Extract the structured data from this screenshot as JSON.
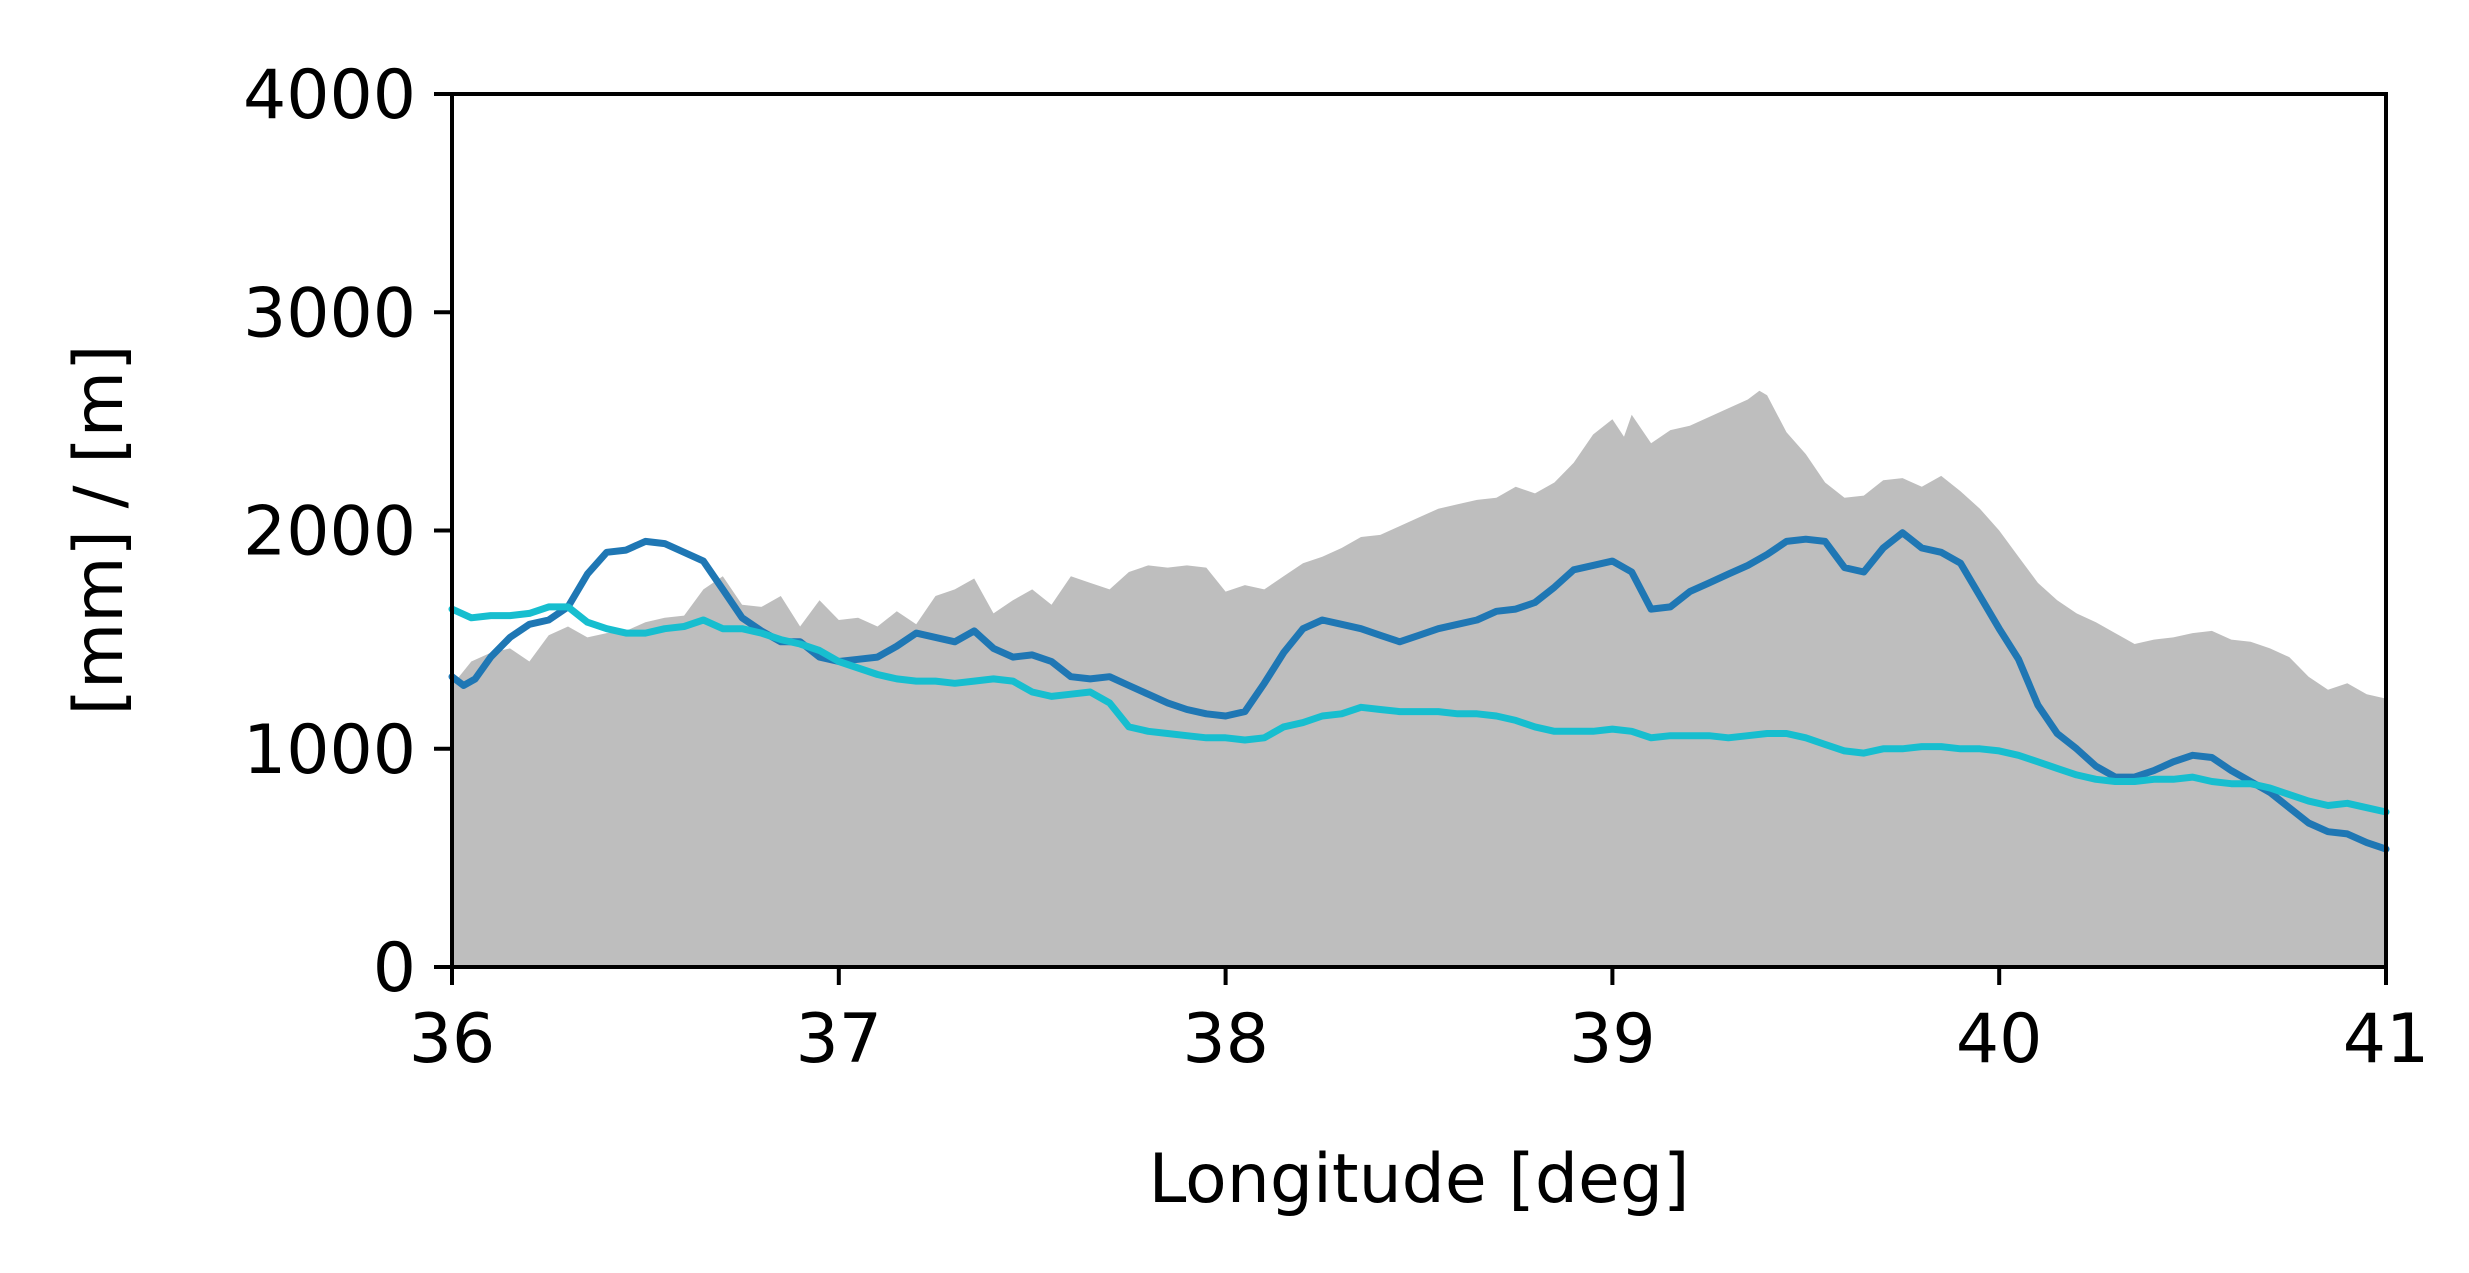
{
  "chart_data": {
    "type": "area",
    "title": "",
    "xlabel": "Longitude [deg]",
    "ylabel": "[mm] / [m]",
    "xlim": [
      36,
      41
    ],
    "ylim": [
      0,
      4000
    ],
    "grid": false,
    "legend": "none",
    "x_ticks": [
      36,
      37,
      38,
      39,
      40,
      41
    ],
    "x_tick_labels": [
      "36",
      "37",
      "38",
      "39",
      "40",
      "41"
    ],
    "y_ticks": [
      0,
      1000,
      2000,
      3000,
      4000
    ],
    "y_tick_labels": [
      "0",
      "1000",
      "2000",
      "3000",
      "4000"
    ],
    "series": [
      {
        "kind": "area",
        "color": "#bebebe",
        "points": [
          [
            36.0,
            1290
          ],
          [
            36.05,
            1400
          ],
          [
            36.1,
            1440
          ],
          [
            36.15,
            1460
          ],
          [
            36.2,
            1400
          ],
          [
            36.25,
            1520
          ],
          [
            36.3,
            1560
          ],
          [
            36.35,
            1510
          ],
          [
            36.4,
            1530
          ],
          [
            36.45,
            1540
          ],
          [
            36.5,
            1580
          ],
          [
            36.55,
            1600
          ],
          [
            36.6,
            1610
          ],
          [
            36.65,
            1730
          ],
          [
            36.7,
            1790
          ],
          [
            36.75,
            1660
          ],
          [
            36.8,
            1650
          ],
          [
            36.85,
            1700
          ],
          [
            36.9,
            1560
          ],
          [
            36.95,
            1680
          ],
          [
            37.0,
            1590
          ],
          [
            37.05,
            1600
          ],
          [
            37.1,
            1560
          ],
          [
            37.15,
            1630
          ],
          [
            37.2,
            1570
          ],
          [
            37.25,
            1700
          ],
          [
            37.3,
            1730
          ],
          [
            37.35,
            1780
          ],
          [
            37.4,
            1620
          ],
          [
            37.45,
            1680
          ],
          [
            37.5,
            1730
          ],
          [
            37.55,
            1660
          ],
          [
            37.6,
            1790
          ],
          [
            37.65,
            1760
          ],
          [
            37.7,
            1730
          ],
          [
            37.75,
            1810
          ],
          [
            37.8,
            1840
          ],
          [
            37.85,
            1830
          ],
          [
            37.9,
            1840
          ],
          [
            37.95,
            1830
          ],
          [
            38.0,
            1720
          ],
          [
            38.05,
            1750
          ],
          [
            38.1,
            1730
          ],
          [
            38.15,
            1790
          ],
          [
            38.2,
            1850
          ],
          [
            38.25,
            1880
          ],
          [
            38.3,
            1920
          ],
          [
            38.35,
            1970
          ],
          [
            38.4,
            1980
          ],
          [
            38.45,
            2020
          ],
          [
            38.5,
            2060
          ],
          [
            38.55,
            2100
          ],
          [
            38.6,
            2120
          ],
          [
            38.65,
            2140
          ],
          [
            38.7,
            2150
          ],
          [
            38.75,
            2200
          ],
          [
            38.8,
            2170
          ],
          [
            38.85,
            2220
          ],
          [
            38.9,
            2310
          ],
          [
            38.95,
            2440
          ],
          [
            39.0,
            2510
          ],
          [
            39.03,
            2430
          ],
          [
            39.05,
            2530
          ],
          [
            39.1,
            2400
          ],
          [
            39.15,
            2460
          ],
          [
            39.2,
            2480
          ],
          [
            39.25,
            2520
          ],
          [
            39.3,
            2560
          ],
          [
            39.35,
            2600
          ],
          [
            39.38,
            2640
          ],
          [
            39.4,
            2620
          ],
          [
            39.45,
            2450
          ],
          [
            39.5,
            2350
          ],
          [
            39.55,
            2220
          ],
          [
            39.6,
            2150
          ],
          [
            39.65,
            2160
          ],
          [
            39.7,
            2230
          ],
          [
            39.75,
            2240
          ],
          [
            39.8,
            2200
          ],
          [
            39.85,
            2250
          ],
          [
            39.9,
            2180
          ],
          [
            39.95,
            2100
          ],
          [
            40.0,
            2000
          ],
          [
            40.05,
            1880
          ],
          [
            40.1,
            1760
          ],
          [
            40.15,
            1680
          ],
          [
            40.2,
            1620
          ],
          [
            40.25,
            1580
          ],
          [
            40.3,
            1530
          ],
          [
            40.35,
            1480
          ],
          [
            40.4,
            1500
          ],
          [
            40.45,
            1510
          ],
          [
            40.5,
            1530
          ],
          [
            40.55,
            1540
          ],
          [
            40.6,
            1500
          ],
          [
            40.65,
            1490
          ],
          [
            40.7,
            1460
          ],
          [
            40.75,
            1420
          ],
          [
            40.8,
            1330
          ],
          [
            40.85,
            1270
          ],
          [
            40.9,
            1300
          ],
          [
            40.95,
            1250
          ],
          [
            41.0,
            1230
          ]
        ]
      },
      {
        "kind": "line",
        "color": "#1f77b4",
        "points": [
          [
            36.0,
            1330
          ],
          [
            36.03,
            1290
          ],
          [
            36.06,
            1320
          ],
          [
            36.1,
            1420
          ],
          [
            36.15,
            1510
          ],
          [
            36.2,
            1570
          ],
          [
            36.25,
            1590
          ],
          [
            36.3,
            1650
          ],
          [
            36.35,
            1800
          ],
          [
            36.4,
            1900
          ],
          [
            36.45,
            1910
          ],
          [
            36.5,
            1950
          ],
          [
            36.55,
            1940
          ],
          [
            36.6,
            1900
          ],
          [
            36.65,
            1860
          ],
          [
            36.7,
            1730
          ],
          [
            36.75,
            1600
          ],
          [
            36.8,
            1540
          ],
          [
            36.85,
            1490
          ],
          [
            36.9,
            1490
          ],
          [
            36.95,
            1420
          ],
          [
            37.0,
            1400
          ],
          [
            37.05,
            1410
          ],
          [
            37.1,
            1420
          ],
          [
            37.15,
            1470
          ],
          [
            37.2,
            1530
          ],
          [
            37.25,
            1510
          ],
          [
            37.3,
            1490
          ],
          [
            37.35,
            1540
          ],
          [
            37.4,
            1460
          ],
          [
            37.45,
            1420
          ],
          [
            37.5,
            1430
          ],
          [
            37.55,
            1400
          ],
          [
            37.6,
            1330
          ],
          [
            37.65,
            1320
          ],
          [
            37.7,
            1330
          ],
          [
            37.75,
            1290
          ],
          [
            37.8,
            1250
          ],
          [
            37.85,
            1210
          ],
          [
            37.9,
            1180
          ],
          [
            37.95,
            1160
          ],
          [
            38.0,
            1150
          ],
          [
            38.05,
            1170
          ],
          [
            38.1,
            1300
          ],
          [
            38.15,
            1440
          ],
          [
            38.2,
            1550
          ],
          [
            38.25,
            1590
          ],
          [
            38.3,
            1570
          ],
          [
            38.35,
            1550
          ],
          [
            38.4,
            1520
          ],
          [
            38.45,
            1490
          ],
          [
            38.5,
            1520
          ],
          [
            38.55,
            1550
          ],
          [
            38.6,
            1570
          ],
          [
            38.65,
            1590
          ],
          [
            38.7,
            1630
          ],
          [
            38.75,
            1640
          ],
          [
            38.8,
            1670
          ],
          [
            38.85,
            1740
          ],
          [
            38.9,
            1820
          ],
          [
            38.95,
            1840
          ],
          [
            39.0,
            1860
          ],
          [
            39.05,
            1810
          ],
          [
            39.1,
            1640
          ],
          [
            39.15,
            1650
          ],
          [
            39.2,
            1720
          ],
          [
            39.25,
            1760
          ],
          [
            39.3,
            1800
          ],
          [
            39.35,
            1840
          ],
          [
            39.4,
            1890
          ],
          [
            39.45,
            1950
          ],
          [
            39.5,
            1960
          ],
          [
            39.55,
            1950
          ],
          [
            39.6,
            1830
          ],
          [
            39.65,
            1810
          ],
          [
            39.7,
            1920
          ],
          [
            39.75,
            1990
          ],
          [
            39.8,
            1920
          ],
          [
            39.85,
            1900
          ],
          [
            39.9,
            1850
          ],
          [
            39.95,
            1700
          ],
          [
            40.0,
            1550
          ],
          [
            40.05,
            1410
          ],
          [
            40.1,
            1200
          ],
          [
            40.15,
            1070
          ],
          [
            40.2,
            1000
          ],
          [
            40.25,
            920
          ],
          [
            40.3,
            870
          ],
          [
            40.35,
            870
          ],
          [
            40.4,
            900
          ],
          [
            40.45,
            940
          ],
          [
            40.5,
            970
          ],
          [
            40.55,
            960
          ],
          [
            40.6,
            900
          ],
          [
            40.65,
            850
          ],
          [
            40.7,
            800
          ],
          [
            40.75,
            730
          ],
          [
            40.8,
            660
          ],
          [
            40.85,
            620
          ],
          [
            40.9,
            610
          ],
          [
            40.95,
            570
          ],
          [
            41.0,
            540
          ]
        ]
      },
      {
        "kind": "line",
        "color": "#17becf",
        "points": [
          [
            36.0,
            1640
          ],
          [
            36.05,
            1600
          ],
          [
            36.1,
            1610
          ],
          [
            36.15,
            1610
          ],
          [
            36.2,
            1620
          ],
          [
            36.25,
            1650
          ],
          [
            36.3,
            1650
          ],
          [
            36.35,
            1580
          ],
          [
            36.4,
            1550
          ],
          [
            36.45,
            1530
          ],
          [
            36.5,
            1530
          ],
          [
            36.55,
            1550
          ],
          [
            36.6,
            1560
          ],
          [
            36.65,
            1590
          ],
          [
            36.7,
            1550
          ],
          [
            36.75,
            1550
          ],
          [
            36.8,
            1530
          ],
          [
            36.85,
            1500
          ],
          [
            36.9,
            1480
          ],
          [
            36.95,
            1450
          ],
          [
            37.0,
            1400
          ],
          [
            37.05,
            1370
          ],
          [
            37.1,
            1340
          ],
          [
            37.15,
            1320
          ],
          [
            37.2,
            1310
          ],
          [
            37.25,
            1310
          ],
          [
            37.3,
            1300
          ],
          [
            37.35,
            1310
          ],
          [
            37.4,
            1320
          ],
          [
            37.45,
            1310
          ],
          [
            37.5,
            1260
          ],
          [
            37.55,
            1240
          ],
          [
            37.6,
            1250
          ],
          [
            37.65,
            1260
          ],
          [
            37.7,
            1210
          ],
          [
            37.75,
            1100
          ],
          [
            37.8,
            1080
          ],
          [
            37.85,
            1070
          ],
          [
            37.9,
            1060
          ],
          [
            37.95,
            1050
          ],
          [
            38.0,
            1050
          ],
          [
            38.05,
            1040
          ],
          [
            38.1,
            1050
          ],
          [
            38.15,
            1100
          ],
          [
            38.2,
            1120
          ],
          [
            38.25,
            1150
          ],
          [
            38.3,
            1160
          ],
          [
            38.35,
            1190
          ],
          [
            38.4,
            1180
          ],
          [
            38.45,
            1170
          ],
          [
            38.5,
            1170
          ],
          [
            38.55,
            1170
          ],
          [
            38.6,
            1160
          ],
          [
            38.65,
            1160
          ],
          [
            38.7,
            1150
          ],
          [
            38.75,
            1130
          ],
          [
            38.8,
            1100
          ],
          [
            38.85,
            1080
          ],
          [
            38.9,
            1080
          ],
          [
            38.95,
            1080
          ],
          [
            39.0,
            1090
          ],
          [
            39.05,
            1080
          ],
          [
            39.1,
            1050
          ],
          [
            39.15,
            1060
          ],
          [
            39.2,
            1060
          ],
          [
            39.25,
            1060
          ],
          [
            39.3,
            1050
          ],
          [
            39.35,
            1060
          ],
          [
            39.4,
            1070
          ],
          [
            39.45,
            1070
          ],
          [
            39.5,
            1050
          ],
          [
            39.55,
            1020
          ],
          [
            39.6,
            990
          ],
          [
            39.65,
            980
          ],
          [
            39.7,
            1000
          ],
          [
            39.75,
            1000
          ],
          [
            39.8,
            1010
          ],
          [
            39.85,
            1010
          ],
          [
            39.9,
            1000
          ],
          [
            39.95,
            1000
          ],
          [
            40.0,
            990
          ],
          [
            40.05,
            970
          ],
          [
            40.1,
            940
          ],
          [
            40.15,
            910
          ],
          [
            40.2,
            880
          ],
          [
            40.25,
            860
          ],
          [
            40.3,
            850
          ],
          [
            40.35,
            850
          ],
          [
            40.4,
            860
          ],
          [
            40.45,
            860
          ],
          [
            40.5,
            870
          ],
          [
            40.55,
            850
          ],
          [
            40.6,
            840
          ],
          [
            40.65,
            840
          ],
          [
            40.7,
            820
          ],
          [
            40.75,
            790
          ],
          [
            40.8,
            760
          ],
          [
            40.85,
            740
          ],
          [
            40.9,
            750
          ],
          [
            40.95,
            730
          ],
          [
            41.0,
            710
          ]
        ]
      }
    ]
  }
}
